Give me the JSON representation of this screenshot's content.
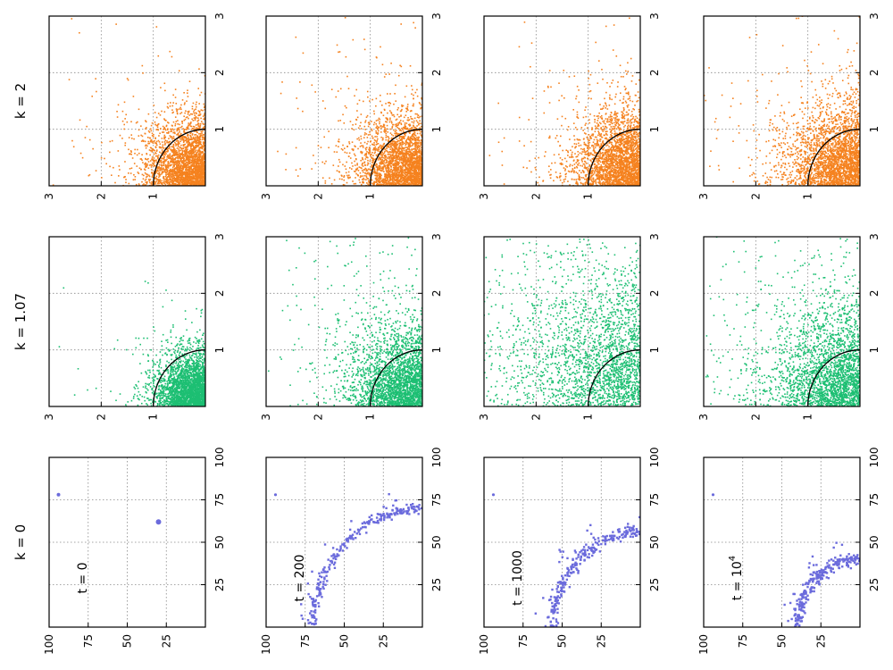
{
  "chart_data": {
    "type": "scatter",
    "rows": [
      {
        "label": "k = 2",
        "color": "#f5821f",
        "axis_range": [
          0,
          3
        ],
        "ticks": [
          "1",
          "2",
          "3"
        ],
        "unit_arc": true,
        "panels": [
          {
            "spread": 0.55,
            "tail": 0.05
          },
          {
            "spread": 0.58,
            "tail": 0.05
          },
          {
            "spread": 0.62,
            "tail": 0.06
          },
          {
            "spread": 0.68,
            "tail": 0.07
          }
        ]
      },
      {
        "label": "k = 1.07",
        "color": "#1dbf73",
        "axis_range": [
          0,
          3
        ],
        "ticks": [
          "1",
          "2",
          "3"
        ],
        "unit_arc": true,
        "panels": [
          {
            "spread": 0.45,
            "tail": 0.03
          },
          {
            "spread": 0.65,
            "tail": 0.12
          },
          {
            "spread": 1.1,
            "tail": 0.3
          },
          {
            "spread": 0.8,
            "tail": 0.15
          }
        ]
      },
      {
        "label": "k = 0",
        "color": "#6b6bdc",
        "axis_range": [
          0,
          100
        ],
        "ticks": [
          "25",
          "50",
          "75",
          "100"
        ],
        "unit_arc": false,
        "panels": [
          {
            "t_label": "t = 0",
            "t_base": "t = ",
            "t_value": "0",
            "t_exp": "",
            "radius": 0
          },
          {
            "t_label": "t = 200",
            "t_base": "t = ",
            "t_value": "200",
            "t_exp": "",
            "radius": 70
          },
          {
            "t_label": "t = 1000",
            "t_base": "t = ",
            "t_value": "1000",
            "t_exp": "",
            "radius": 56
          },
          {
            "t_label": "t = 10^4",
            "t_base": "t = ",
            "t_value": "10",
            "t_exp": "4",
            "radius": 40
          }
        ]
      }
    ]
  }
}
